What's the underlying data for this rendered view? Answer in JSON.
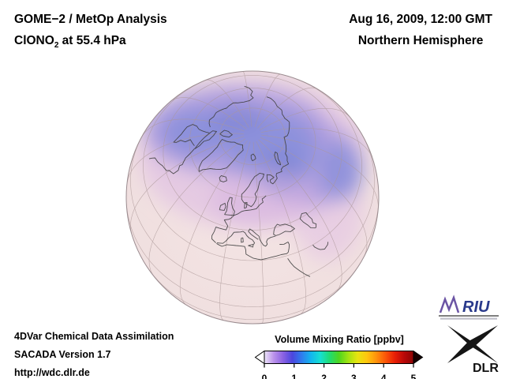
{
  "header": {
    "title": "GOME−2 / MetOp Analysis",
    "species_prefix": "ClONO",
    "species_sub": "2",
    "species_suffix": " at 55.4 hPa",
    "datetime": "Aug 16, 2009, 12:00 GMT",
    "hemisphere": "Northern Hemisphere"
  },
  "footer": {
    "line1": "4DVar Chemical Data Assimilation",
    "line2": "SACADA Version 1.7",
    "line3": "http://wdc.dlr.de"
  },
  "colorbar": {
    "title": "Volume Mixing Ratio [ppbv]",
    "ticks": [
      "0",
      "1",
      "2",
      "3",
      "4",
      "5"
    ],
    "min": 0,
    "max": 5,
    "unit": "ppbv",
    "left_arrow": "#ffffff",
    "right_arrow": "#160101",
    "gradient": [
      "#ece6fa",
      "#bb92ea",
      "#8b62e2",
      "#4b46de",
      "#2f7cee",
      "#13b6ee",
      "#16dfd2",
      "#1fdc72",
      "#4ed51e",
      "#a2e312",
      "#e7e410",
      "#ffc60e",
      "#ff930c",
      "#fb5608",
      "#e81f06",
      "#b80808",
      "#8c0505"
    ]
  },
  "logos": {
    "riu_label": "RIU",
    "riu_color": "#2a3a8c",
    "dlr_label": "DLR",
    "dlr_color": "#111111"
  },
  "globe": {
    "projection": "orthographic",
    "region": "Northern Hemisphere",
    "colors": {
      "base_in": "#f4e4e4",
      "base_out": "#eedddd",
      "haze": "#e3c5e3",
      "violet": "#ab9bdf",
      "blue": "#8a90db",
      "deep": "#7a82d3",
      "magenta": "#d6b2e0",
      "grid": "#ab9797",
      "coast": "#3f3f3f",
      "outline": "#9b8c90"
    }
  }
}
